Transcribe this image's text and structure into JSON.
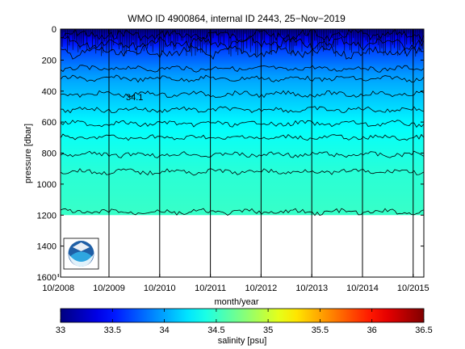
{
  "chart_data": {
    "type": "heatmap",
    "title": "WMO ID 4900864, internal ID 2443, 25−Nov−2019",
    "xlabel": "month/year",
    "ylabel": "pressure [dbar]",
    "colorbar_label": "salinity [psu]",
    "x_ticks": [
      "10/2008",
      "10/2009",
      "10/2010",
      "10/2011",
      "10/2012",
      "10/2013",
      "10/2014",
      "10/2015"
    ],
    "y_ticks": [
      "0",
      "200",
      "400",
      "600",
      "800",
      "1000",
      "1200",
      "1400",
      "1600"
    ],
    "ylim": [
      1600,
      0
    ],
    "colorbar_ticks": [
      "33",
      "33.5",
      "34",
      "34.5",
      "35",
      "35.5",
      "36",
      "36.5"
    ],
    "colorbar_range": [
      33,
      36.5
    ],
    "colormap": "jet",
    "x_range": [
      "2008-09",
      "2015-11"
    ],
    "data_max_depth": 1200,
    "contour_label": "34.1",
    "contours": [
      {
        "salinity": 33.3,
        "depth": 40
      },
      {
        "salinity": 33.5,
        "depth": 90
      },
      {
        "salinity": 33.7,
        "depth": 150
      },
      {
        "salinity": 33.9,
        "depth": 255
      },
      {
        "salinity": 34.0,
        "depth": 320
      },
      {
        "salinity": 34.1,
        "depth": 420
      },
      {
        "salinity": 34.2,
        "depth": 520
      },
      {
        "salinity": 34.3,
        "depth": 610
      },
      {
        "salinity": 34.35,
        "depth": 700
      },
      {
        "salinity": 34.4,
        "depth": 810
      },
      {
        "salinity": 34.45,
        "depth": 920
      },
      {
        "salinity": 34.5,
        "depth": 1180
      }
    ],
    "logo": "noaa-logo"
  }
}
